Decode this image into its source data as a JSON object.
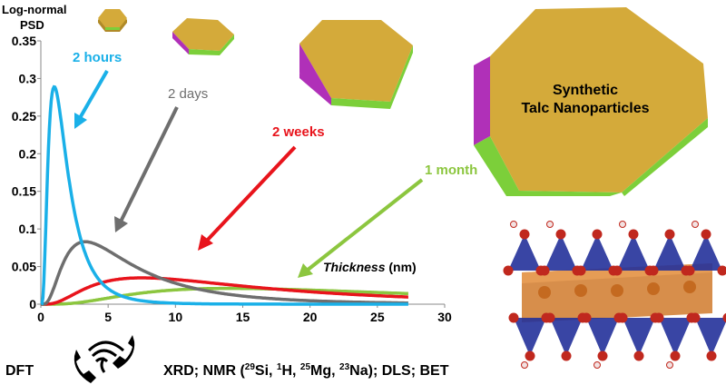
{
  "chart_data": {
    "type": "line",
    "ylabel": "Log-normal PSD",
    "xlabel": "Thickness (nm)",
    "xlim": [
      0,
      30
    ],
    "ylim": [
      0,
      0.35
    ],
    "x_ticks": [
      "0",
      "5",
      "10",
      "15",
      "20",
      "25",
      "30"
    ],
    "y_ticks": [
      "0",
      "0.05",
      "0.1",
      "0.15",
      "0.2",
      "0.25",
      "0.3",
      "0.35"
    ],
    "grid": false,
    "series": [
      {
        "name": "2 hours",
        "color": "#1ab0e8",
        "mode": 1.0,
        "sigma": 0.7,
        "peak": 0.289
      },
      {
        "name": "2 days",
        "color": "#6e6e6e",
        "mode": 3.3,
        "sigma": 0.75,
        "peak": 0.083
      },
      {
        "name": "2 weeks",
        "color": "#e8141c",
        "mode": 7.5,
        "sigma": 0.8,
        "peak": 0.035
      },
      {
        "name": "1 month",
        "color": "#8cc63f",
        "mode": 14.0,
        "sigma": 0.75,
        "peak": 0.021
      }
    ]
  },
  "labels": {
    "hours": "2 hours",
    "days": "2 days",
    "weeks": "2 weeks",
    "month": "1 month",
    "ylabel_line1": "Log-normal",
    "ylabel_line2": "PSD",
    "thickness_word": "Thickness",
    "thickness_unit": " (nm)",
    "product_line1": "Synthetic",
    "product_line2": "Talc Nanoparticles"
  },
  "bottom": {
    "dft": "DFT",
    "methods_a": "XRD; NMR (",
    "si_mass": "29",
    "si": "Si, ",
    "h_mass": "1",
    "h": "H, ",
    "mg_mass": "25",
    "mg": "Mg, ",
    "na_mass": "23",
    "na": "Na); DLS; BET"
  },
  "colors": {
    "talc_face": "#d4aa3a",
    "talc_edge_magenta": "#b030b8",
    "talc_edge_green": "#7ccf3a",
    "tetrahedra": "#24319a",
    "octahedra": "#d07a2c",
    "oxygen": "#c0281e"
  }
}
